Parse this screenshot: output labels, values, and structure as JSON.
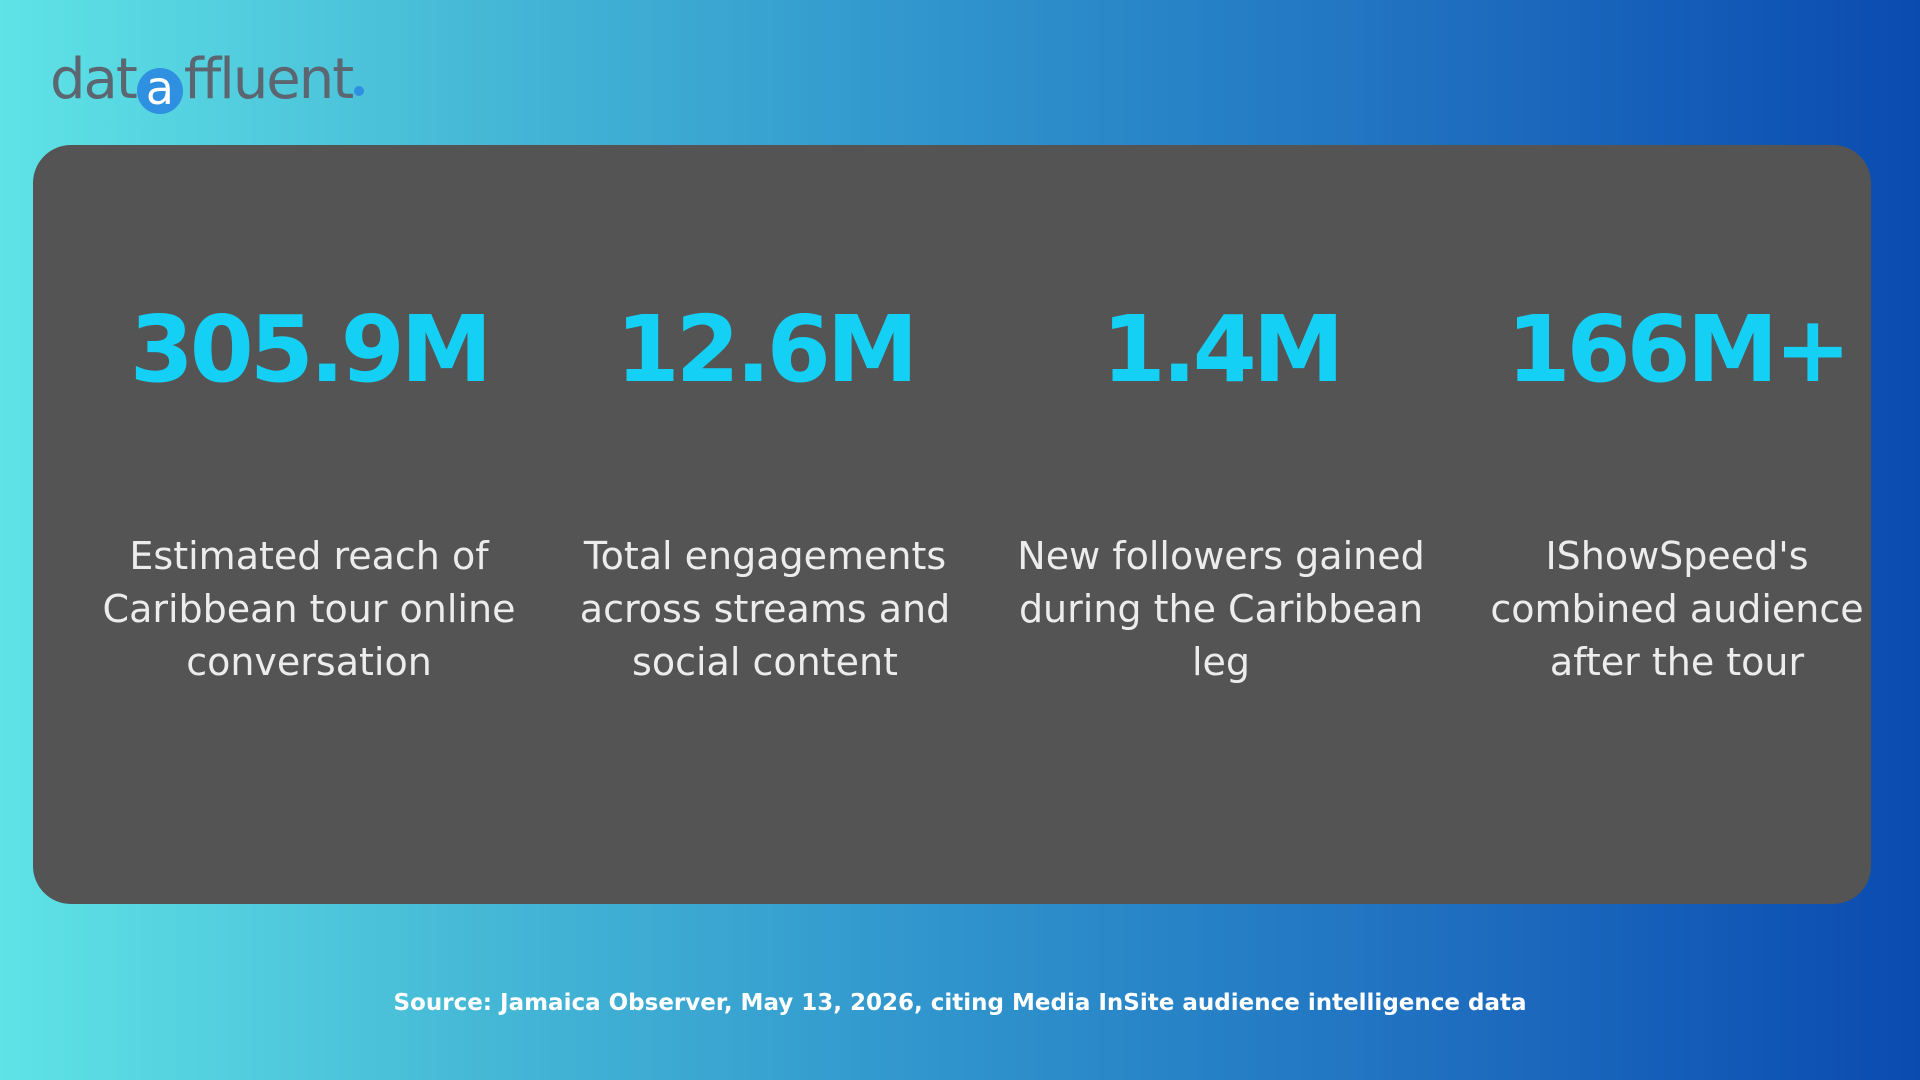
{
  "logo": {
    "prefix": "dat",
    "mark": "a",
    "suffix": "ffluent",
    "accent_color": "#2f8fe0"
  },
  "stats": [
    {
      "value": "305.9M",
      "label": "Estimated reach of Caribbean tour online conversation"
    },
    {
      "value": "12.6M",
      "label": "Total engagements across streams and social content"
    },
    {
      "value": "1.4M",
      "label": "New followers gained during the Caribbean leg"
    },
    {
      "value": "166M+",
      "label": "IShowSpeed's combined audience after the tour"
    }
  ],
  "source": "Source: Jamaica Observer, May 13, 2026, citing Media InSite audience intelligence data",
  "colors": {
    "value_text": "#14d0f5",
    "card_bg": "#545454",
    "gradient_start": "#5fe3e6",
    "gradient_end": "#0a4bb0"
  }
}
